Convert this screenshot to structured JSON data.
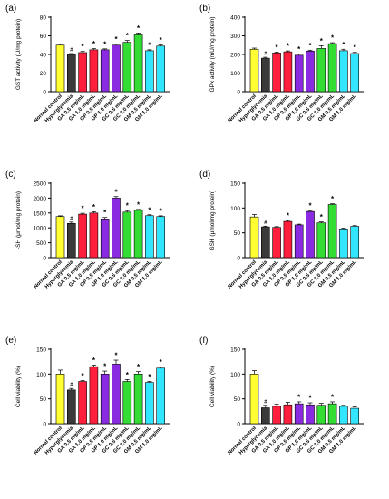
{
  "categories": [
    "Normal control",
    "Hyperglycemia",
    "GA 0.5 mg/mL",
    "GA 1.0 mg/mL",
    "GP 0.5 mg/mL",
    "GP 1.0 mg/mL",
    "GC 0.5 mg/mL",
    "GC 1.0 mg/mL",
    "GM 0.5 mg/mL",
    "GM 1.0 mg/mL"
  ],
  "colors": {
    "bars": [
      "#ffff33",
      "#3a3a3a",
      "#ff1f3c",
      "#ff1f3c",
      "#8a2be2",
      "#8a2be2",
      "#33dd33",
      "#33dd33",
      "#33e6ff",
      "#33e6ff"
    ],
    "axis": "#000000"
  },
  "chart_data": [
    {
      "panel": "(a)",
      "type": "bar",
      "ylabel": "GST activity (U/mg protein)",
      "ylim": [
        0,
        80
      ],
      "yticks": [
        0,
        20,
        40,
        60,
        80
      ],
      "values": [
        50,
        40,
        42,
        45,
        45,
        50,
        53,
        61,
        44,
        49
      ],
      "errors": [
        1,
        1,
        1.2,
        1.2,
        1,
        1.2,
        2,
        2,
        1,
        1.2
      ],
      "marks": [
        "",
        "#",
        "*",
        "*",
        "*",
        "*",
        "*",
        "*",
        "*",
        "*"
      ]
    },
    {
      "panel": "(b)",
      "type": "bar",
      "ylabel": "GPx activity (mU/mg protein)",
      "ylim": [
        0,
        400
      ],
      "yticks": [
        0,
        100,
        200,
        300,
        400
      ],
      "values": [
        228,
        180,
        208,
        214,
        196,
        218,
        232,
        258,
        220,
        205
      ],
      "errors": [
        6,
        5,
        5,
        5,
        7,
        5,
        15,
        5,
        8,
        6
      ],
      "marks": [
        "",
        "#",
        "*",
        "*",
        "*",
        "*",
        "*",
        "*",
        "*",
        "*"
      ]
    },
    {
      "panel": "(c)",
      "type": "bar",
      "ylabel": "-SH (μmol/mg protein)",
      "ylim": [
        0,
        2500
      ],
      "yticks": [
        0,
        500,
        1000,
        1500,
        2000,
        2500
      ],
      "values": [
        1380,
        1150,
        1460,
        1500,
        1300,
        2000,
        1530,
        1590,
        1410,
        1380
      ],
      "errors": [
        25,
        45,
        30,
        40,
        50,
        50,
        50,
        30,
        30,
        25
      ],
      "marks": [
        "",
        "#",
        "*",
        "*",
        "*",
        "*",
        "*",
        "*",
        "*",
        "*"
      ]
    },
    {
      "panel": "(d)",
      "type": "bar",
      "ylabel": "GSH (μmol/mg protein)",
      "ylim": [
        0,
        150
      ],
      "yticks": [
        0,
        50,
        100,
        150
      ],
      "values": [
        82,
        62,
        61,
        73,
        66,
        93,
        70,
        107,
        58,
        63
      ],
      "errors": [
        5,
        1.5,
        1.5,
        2,
        1.5,
        2,
        2,
        1.5,
        1.5,
        1.5
      ],
      "marks": [
        "",
        "#",
        "",
        "*",
        "",
        "*",
        "*",
        "*",
        "",
        ""
      ]
    },
    {
      "panel": "(e)",
      "type": "bar",
      "ylabel": "Cell viability (%)",
      "ylim": [
        0,
        150
      ],
      "yticks": [
        0,
        50,
        100,
        150
      ],
      "values": [
        100,
        68,
        85,
        115,
        100,
        120,
        85,
        100,
        83,
        112
      ],
      "errors": [
        8,
        3,
        2,
        3,
        6,
        8,
        4,
        5,
        2,
        2
      ],
      "marks": [
        "",
        "#",
        "*",
        "*",
        "*",
        "*",
        "*",
        "*",
        "*",
        "*"
      ]
    },
    {
      "panel": "(f)",
      "type": "bar",
      "ylabel": "Cell viability (%)",
      "ylim": [
        0,
        150
      ],
      "yticks": [
        0,
        50,
        100,
        150
      ],
      "values": [
        100,
        32,
        35,
        38,
        40,
        38,
        37,
        40,
        35,
        31
      ],
      "errors": [
        7,
        5,
        4,
        5,
        4,
        4,
        4,
        4,
        2,
        3
      ],
      "marks": [
        "",
        "#",
        "",
        "",
        "*",
        "*",
        "",
        "*",
        "",
        ""
      ]
    }
  ]
}
